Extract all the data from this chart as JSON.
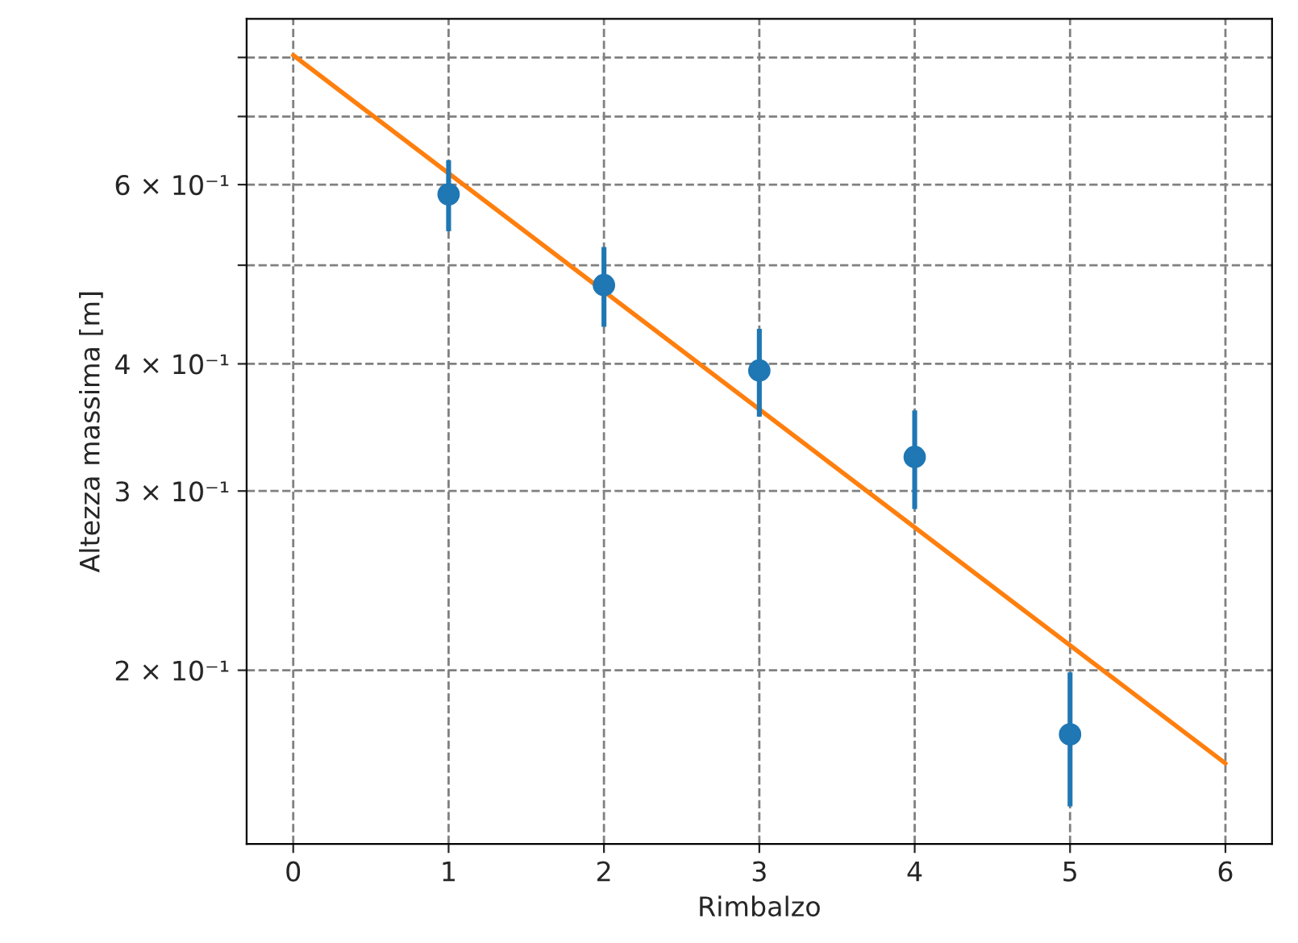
{
  "chart_data": {
    "type": "scatter",
    "xlabel": "Rimbalzo",
    "ylabel": "Altezza massima [m]",
    "series": [
      {
        "color": "#1f77b4",
        "marker": "circle",
        "x": [
          1,
          2,
          3,
          4,
          5
        ],
        "values": [
          0.587,
          0.478,
          0.394,
          0.324,
          0.173
        ],
        "errors": [
          0.047,
          0.043,
          0.039,
          0.036,
          0.026
        ]
      },
      {
        "type": "line",
        "color": "#ff7f0e",
        "marker": "none",
        "line_style": "solid",
        "x": [
          0,
          6
        ],
        "values": [
          0.804,
          0.162
        ]
      }
    ],
    "log": "y",
    "xlim": [
      -0.3,
      6.3
    ],
    "ylim": [
      0.135,
      0.873
    ],
    "xticks": [
      0,
      1,
      2,
      3,
      4,
      5,
      6
    ],
    "yticks": [
      {
        "value": 0.2,
        "label": "2 × 10⁻¹"
      },
      {
        "value": 0.3,
        "label": "3 × 10⁻¹"
      },
      {
        "value": 0.4,
        "label": "4 × 10⁻¹"
      },
      {
        "value": 0.5,
        "label": null
      },
      {
        "value": 0.6,
        "label": "6 × 10⁻¹"
      },
      {
        "value": 0.7,
        "label": null
      },
      {
        "value": 0.8,
        "label": null
      }
    ],
    "grid": true
  }
}
